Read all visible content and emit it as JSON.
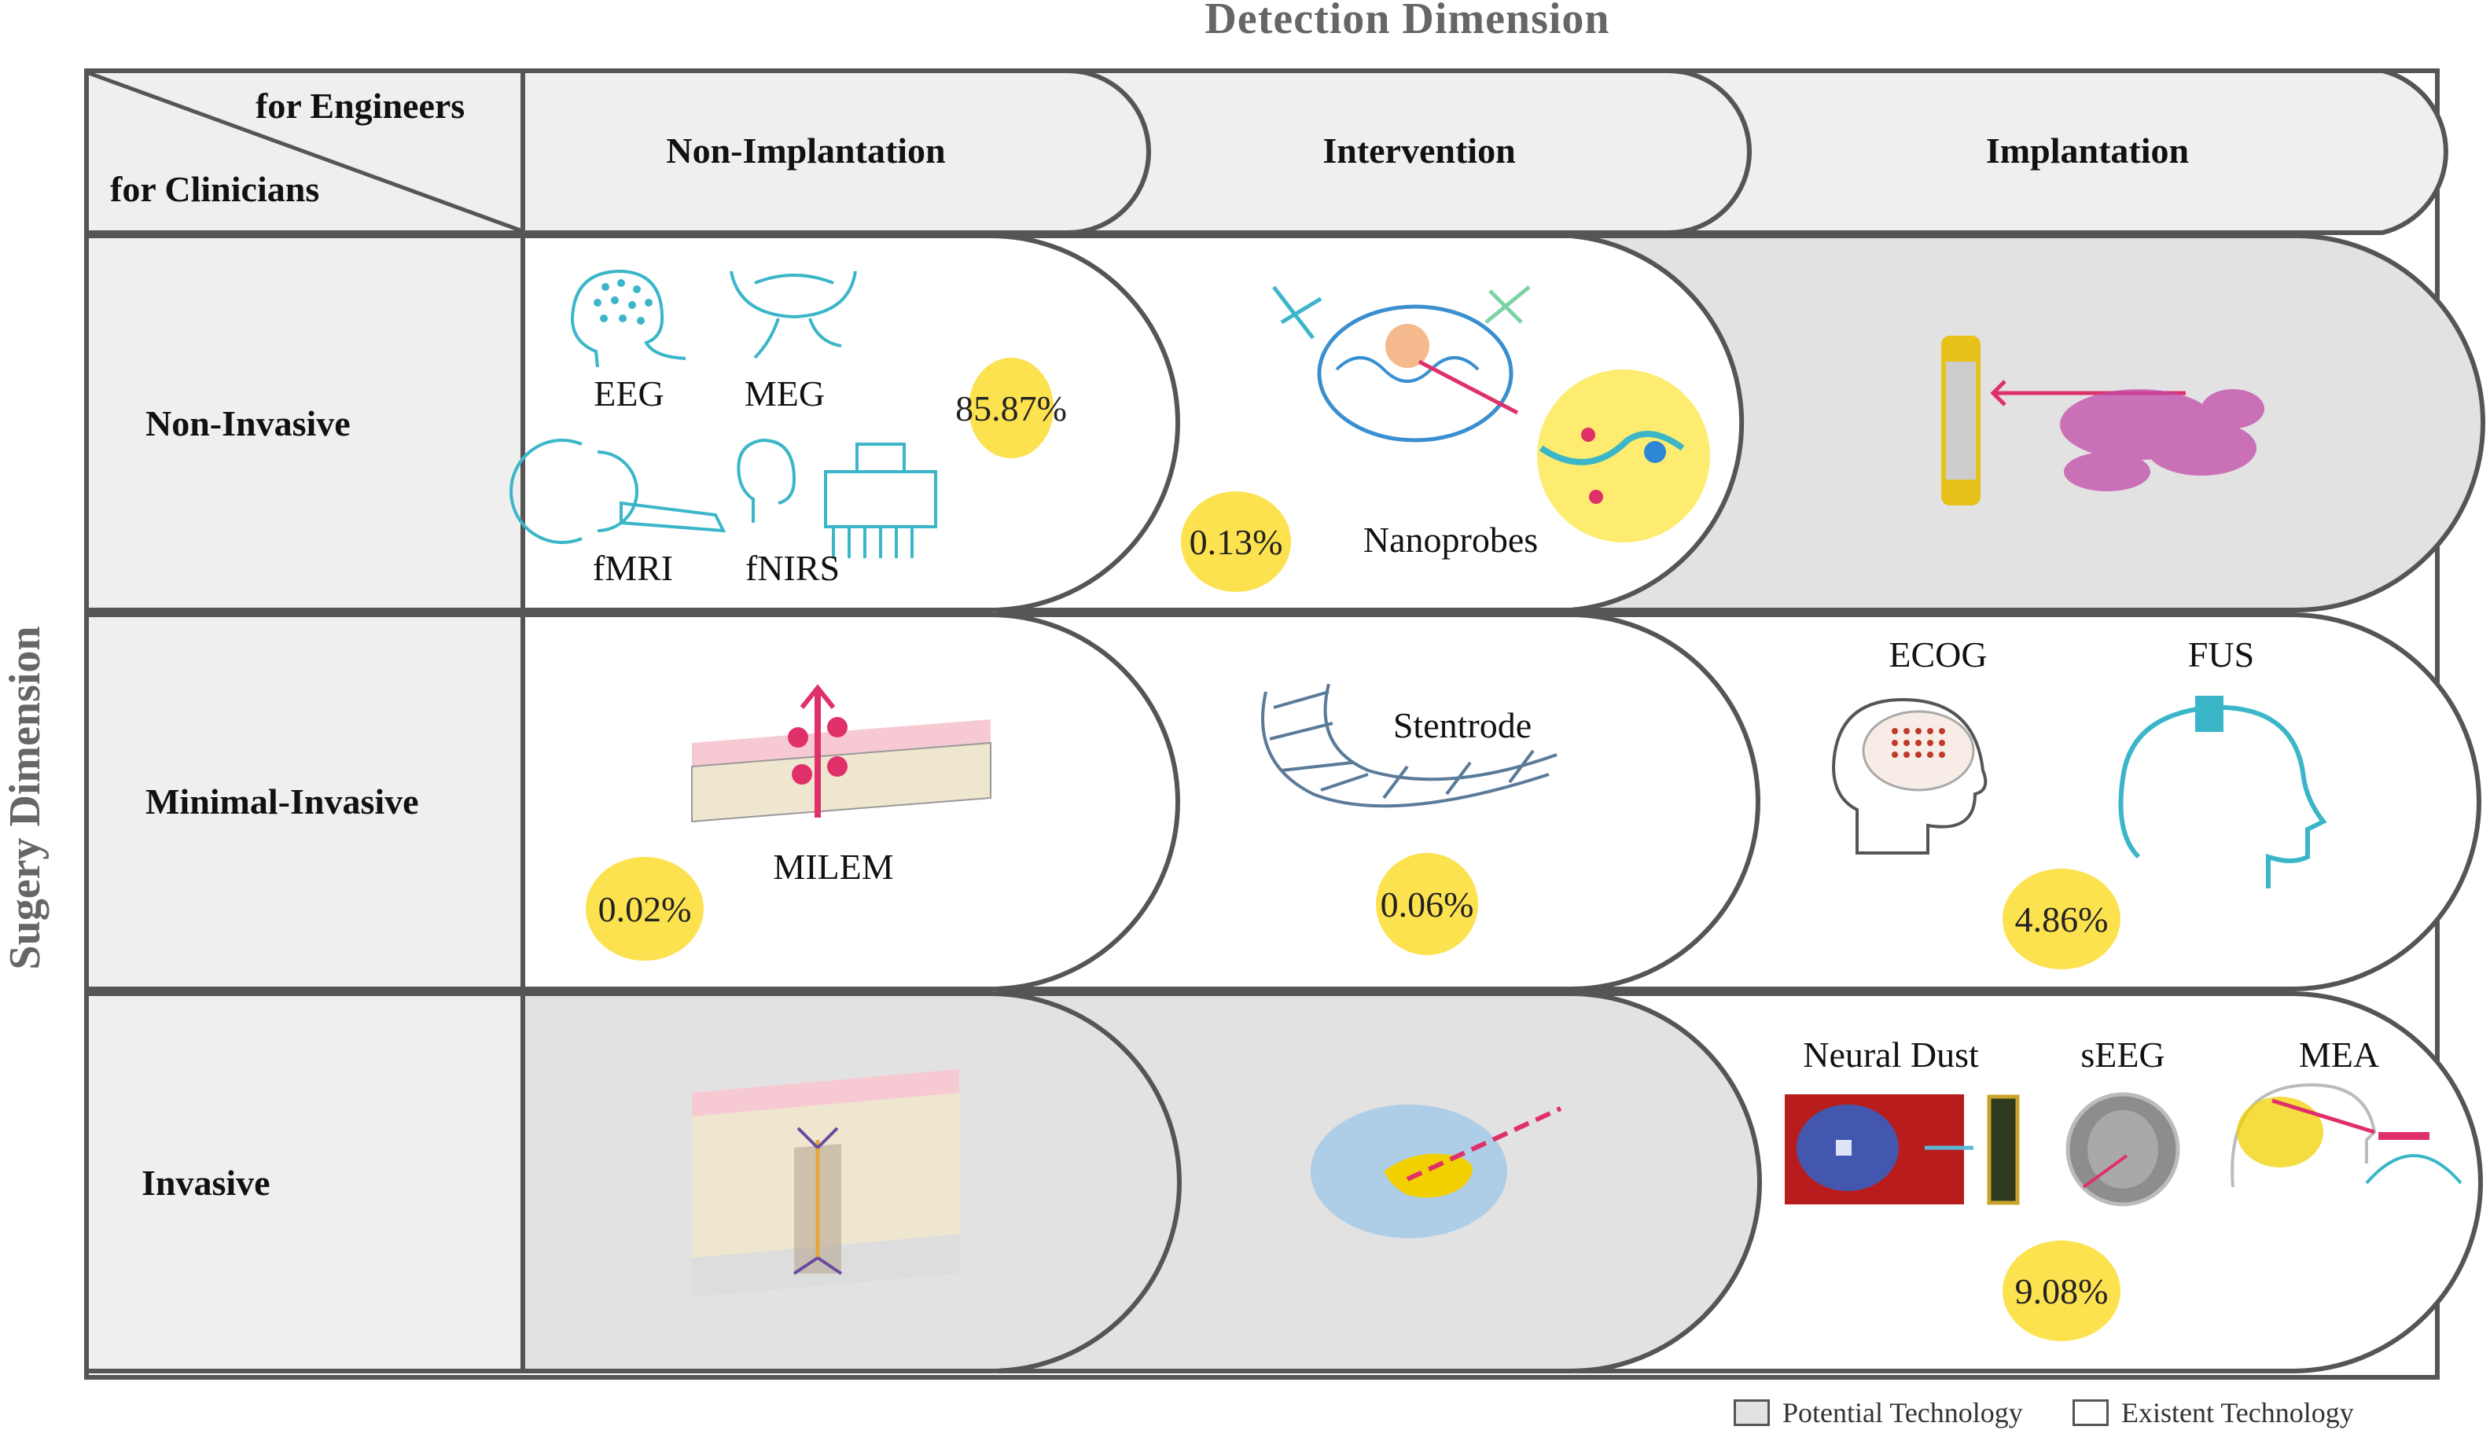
{
  "title_top": "Detection Dimension",
  "title_side": "Sugery Dimension",
  "corner": {
    "top": "for Engineers",
    "bottom": "for Clinicians"
  },
  "columns": [
    "Non-Implantation",
    "Intervention",
    "Implantation"
  ],
  "rows": [
    "Non-Invasive",
    "Minimal-Invasive",
    "Invasive"
  ],
  "cells": {
    "r1c1": {
      "labels": [
        "EEG",
        "MEG",
        "fMRI",
        "fNIRS"
      ],
      "percent": "85.87%"
    },
    "r1c2": {
      "labels": [
        "Nanoprobes"
      ],
      "percent": "0.13%"
    },
    "r2c1": {
      "labels": [
        "MILEM"
      ],
      "percent": "0.02%"
    },
    "r2c2": {
      "labels": [
        "Stentrode"
      ],
      "percent": "0.06%"
    },
    "r2c3": {
      "labels": [
        "ECOG",
        "FUS"
      ],
      "percent": "4.86%"
    },
    "r3c3": {
      "labels": [
        "Neural Dust",
        "sEEG",
        "MEA"
      ],
      "percent": "9.08%"
    }
  },
  "legend": {
    "potential": "Potential Technology",
    "existent": "Existent Technology"
  },
  "colors": {
    "potential_fill": "#e2e2e2",
    "existent_fill": "#ffffff",
    "badge": "#fde24f",
    "border": "#555555"
  }
}
